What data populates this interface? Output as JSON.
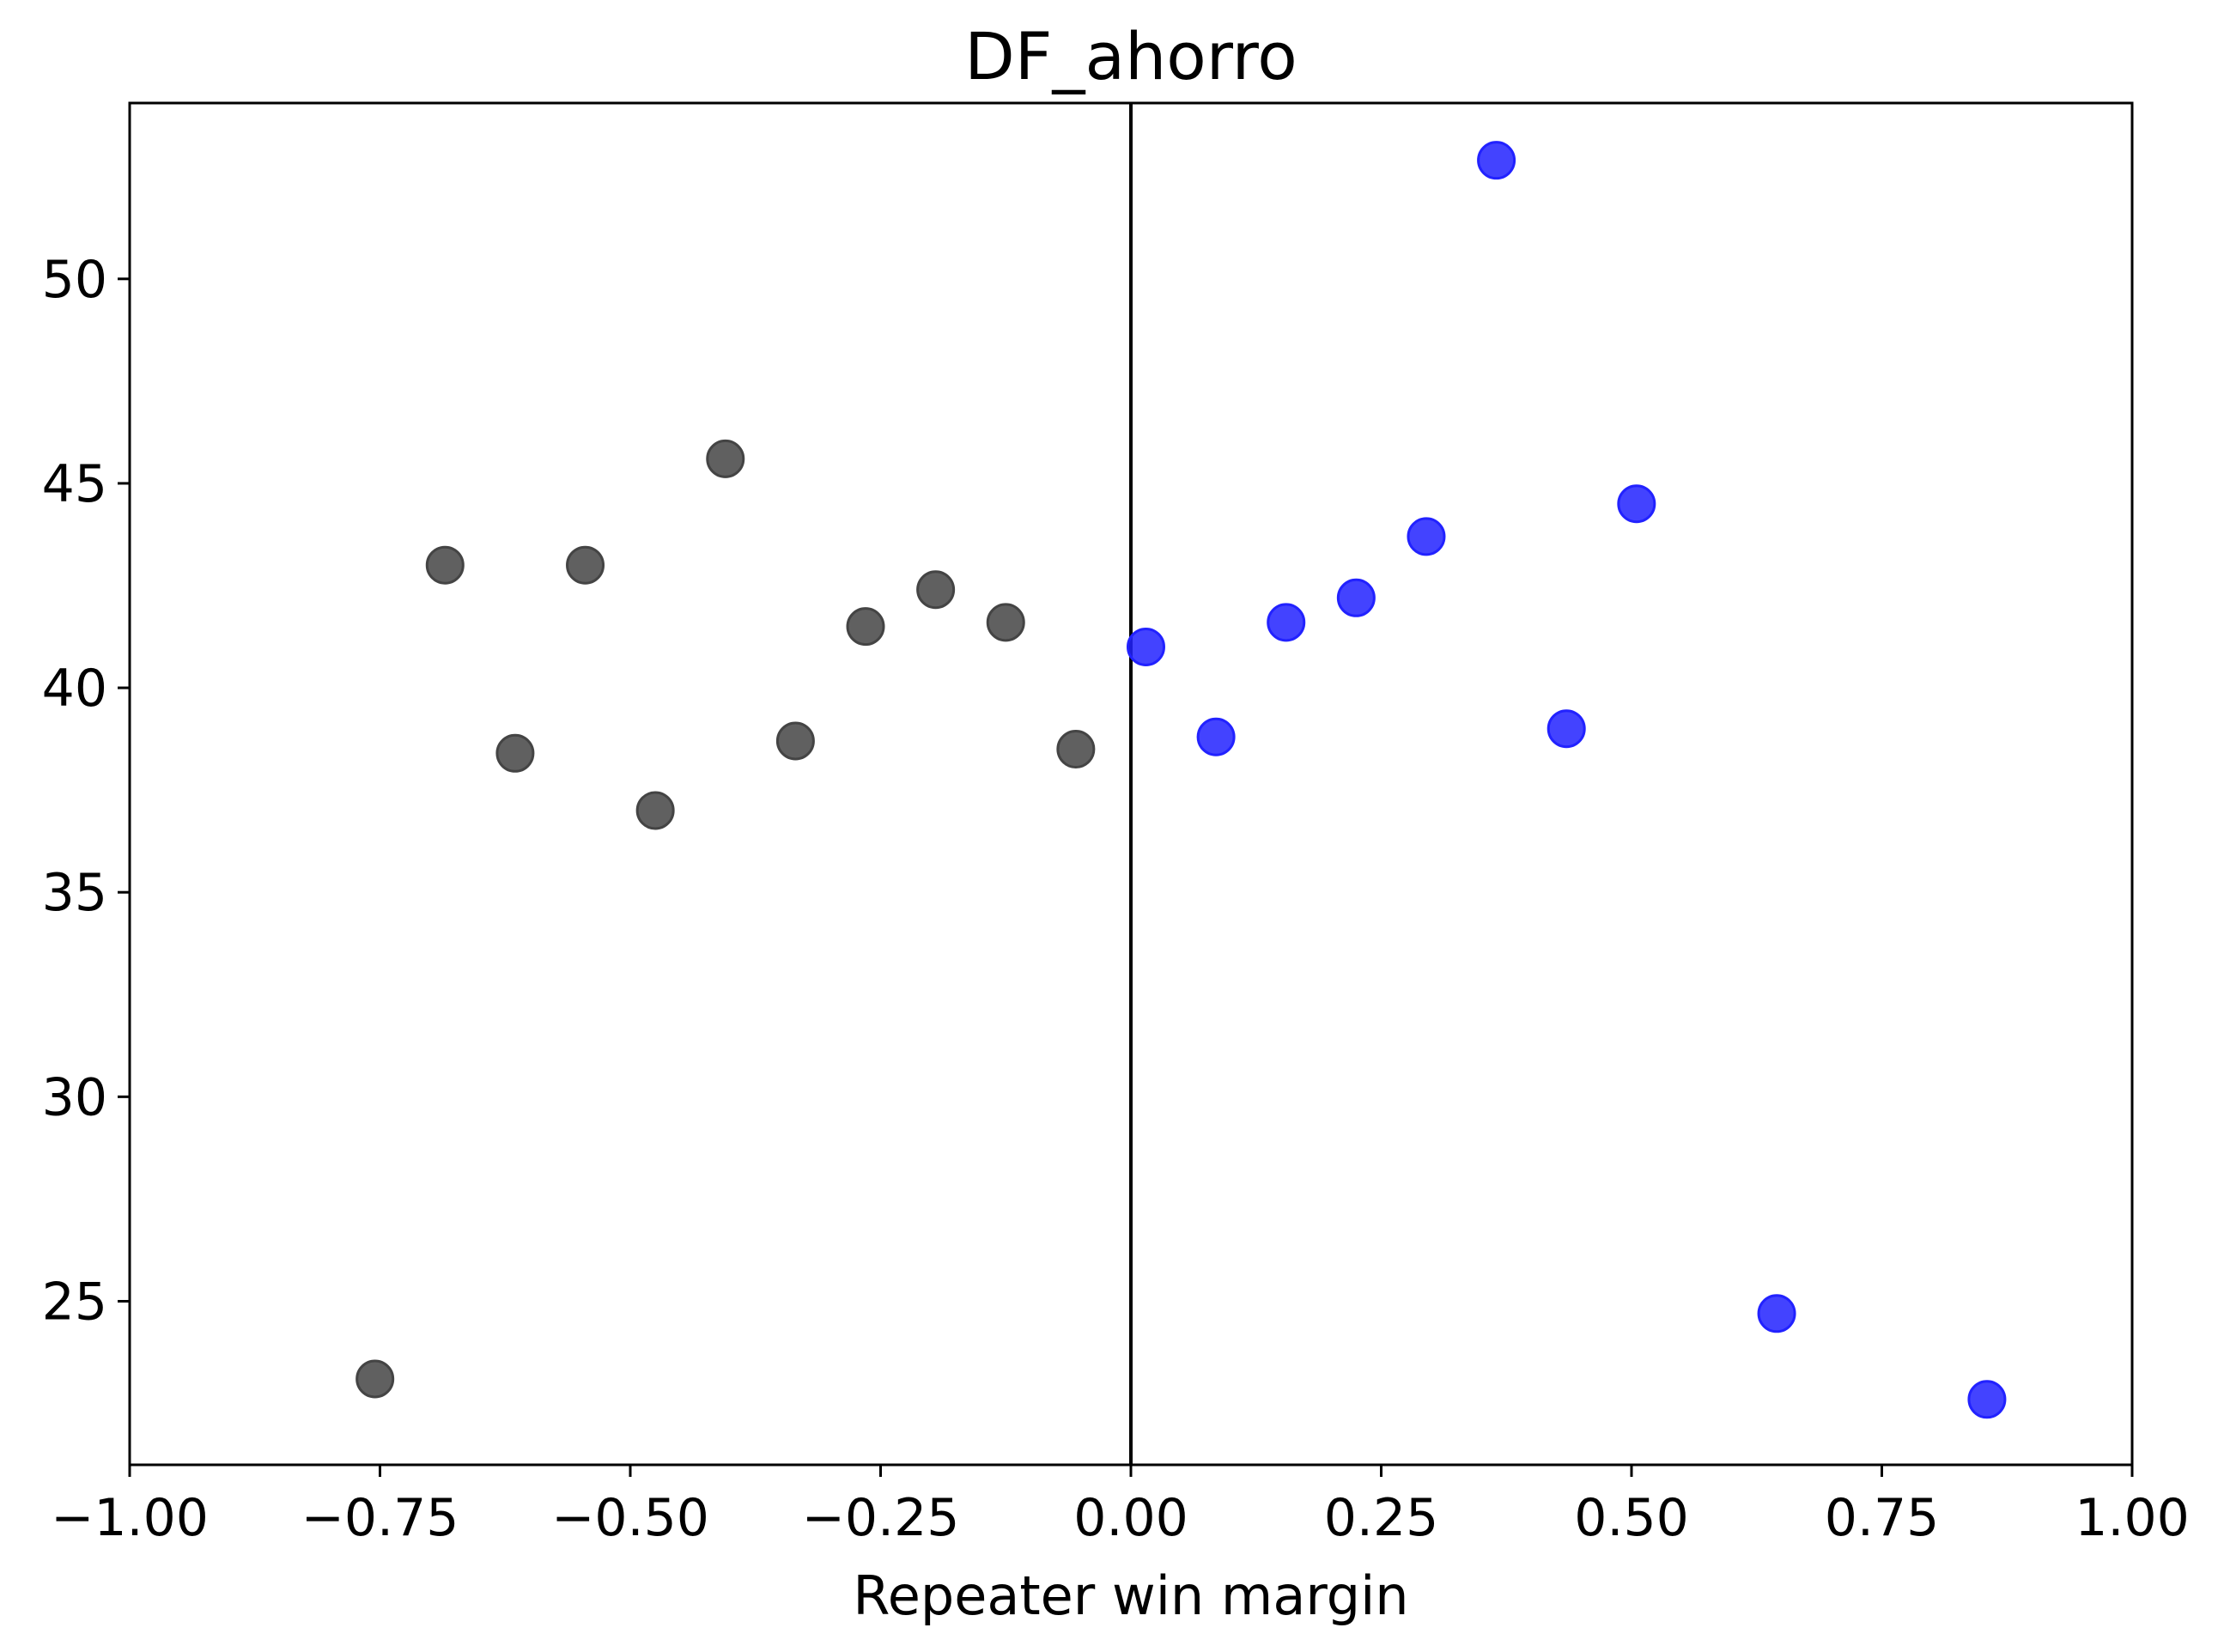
{
  "chart_data": {
    "type": "scatter",
    "title": "DF_ahorro",
    "xlabel": "Repeater win margin",
    "ylabel": "",
    "xlim": [
      -1.0,
      1.0
    ],
    "ylim": [
      21.0,
      54.3
    ],
    "grid": false,
    "x_ticks": [
      -1.0,
      -0.75,
      -0.5,
      -0.25,
      0.0,
      0.25,
      0.5,
      0.75,
      1.0
    ],
    "x_tick_labels": [
      "−1.00",
      "−0.75",
      "−0.50",
      "−0.25",
      "0.00",
      "0.25",
      "0.50",
      "0.75",
      "1.00"
    ],
    "y_ticks": [
      25,
      30,
      35,
      40,
      45,
      50
    ],
    "y_tick_labels": [
      "25",
      "30",
      "35",
      "40",
      "45",
      "50"
    ],
    "reference_line": {
      "orientation": "vertical",
      "x": 0.0,
      "color": "#000000"
    },
    "series": [
      {
        "color": "#444444",
        "points": [
          {
            "x": -0.755,
            "y": 23.1
          },
          {
            "x": -0.685,
            "y": 43.0
          },
          {
            "x": -0.615,
            "y": 38.4
          },
          {
            "x": -0.545,
            "y": 43.0
          },
          {
            "x": -0.475,
            "y": 37.0
          },
          {
            "x": -0.405,
            "y": 45.6
          },
          {
            "x": -0.335,
            "y": 38.7
          },
          {
            "x": -0.265,
            "y": 41.5
          },
          {
            "x": -0.195,
            "y": 42.4
          },
          {
            "x": -0.125,
            "y": 41.6
          },
          {
            "x": -0.055,
            "y": 38.5
          }
        ]
      },
      {
        "color": "#2222ff",
        "points": [
          {
            "x": 0.015,
            "y": 41.0
          },
          {
            "x": 0.085,
            "y": 38.8
          },
          {
            "x": 0.155,
            "y": 41.6
          },
          {
            "x": 0.225,
            "y": 42.2
          },
          {
            "x": 0.295,
            "y": 43.7
          },
          {
            "x": 0.365,
            "y": 52.9
          },
          {
            "x": 0.435,
            "y": 39.0
          },
          {
            "x": 0.505,
            "y": 44.5
          },
          {
            "x": 0.645,
            "y": 24.7
          },
          {
            "x": 0.855,
            "y": 22.6
          }
        ]
      }
    ]
  }
}
